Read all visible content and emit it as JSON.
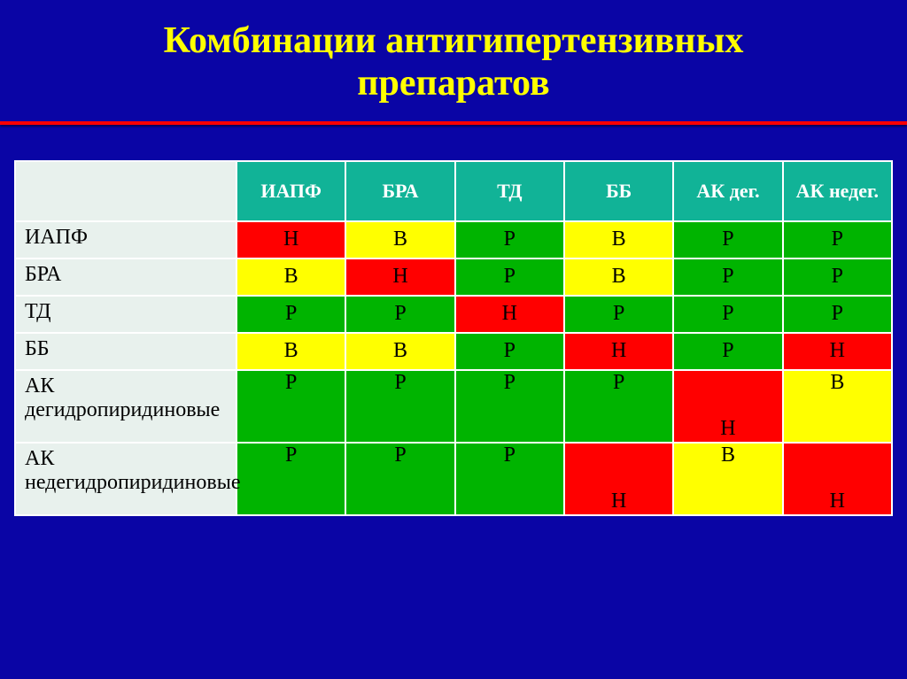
{
  "title_line1": "Комбинации антигипертензивных",
  "title_line2": "препаратов",
  "colors": {
    "green": "#00b400",
    "yellow": "#ffff00",
    "red": "#ff0000",
    "header": "#11b397",
    "rowbg": "#e8f1ed",
    "slide": "#0a05a5"
  },
  "columns": [
    "ИАПФ",
    "БРА",
    "ТД",
    "ББ",
    "АК дег.",
    "АК недег."
  ],
  "rows": [
    {
      "label": "ИАПФ",
      "height": "short",
      "cells": [
        {
          "t": "Н",
          "c": "red",
          "va": "mid"
        },
        {
          "t": "В",
          "c": "yellow",
          "va": "mid"
        },
        {
          "t": "Р",
          "c": "green",
          "va": "mid"
        },
        {
          "t": "В",
          "c": "yellow",
          "va": "mid"
        },
        {
          "t": "Р",
          "c": "green",
          "va": "mid"
        },
        {
          "t": "Р",
          "c": "green",
          "va": "mid"
        }
      ]
    },
    {
      "label": "БРА",
      "height": "short",
      "cells": [
        {
          "t": "В",
          "c": "yellow",
          "va": "mid"
        },
        {
          "t": "Н",
          "c": "red",
          "va": "mid"
        },
        {
          "t": "Р",
          "c": "green",
          "va": "mid"
        },
        {
          "t": "В",
          "c": "yellow",
          "va": "mid"
        },
        {
          "t": "Р",
          "c": "green",
          "va": "mid"
        },
        {
          "t": "Р",
          "c": "green",
          "va": "mid"
        }
      ]
    },
    {
      "label": "ТД",
      "height": "short",
      "cells": [
        {
          "t": "Р",
          "c": "green",
          "va": "mid"
        },
        {
          "t": "Р",
          "c": "green",
          "va": "mid"
        },
        {
          "t": "Н",
          "c": "red",
          "va": "mid"
        },
        {
          "t": "Р",
          "c": "green",
          "va": "mid"
        },
        {
          "t": "Р",
          "c": "green",
          "va": "mid"
        },
        {
          "t": "Р",
          "c": "green",
          "va": "mid"
        }
      ]
    },
    {
      "label": "ББ",
      "height": "short",
      "cells": [
        {
          "t": "В",
          "c": "yellow",
          "va": "mid"
        },
        {
          "t": "В",
          "c": "yellow",
          "va": "mid"
        },
        {
          "t": "Р",
          "c": "green",
          "va": "mid"
        },
        {
          "t": "Н",
          "c": "red",
          "va": "mid"
        },
        {
          "t": "Р",
          "c": "green",
          "va": "mid"
        },
        {
          "t": "Н",
          "c": "red",
          "va": "mid"
        }
      ]
    },
    {
      "label": "АК дегидропиридиновые",
      "height": "tall",
      "cells": [
        {
          "t": "Р",
          "c": "green",
          "va": "top"
        },
        {
          "t": "Р",
          "c": "green",
          "va": "top"
        },
        {
          "t": "Р",
          "c": "green",
          "va": "top"
        },
        {
          "t": "Р",
          "c": "green",
          "va": "top"
        },
        {
          "t": "Н",
          "c": "red",
          "va": "bot"
        },
        {
          "t": "В",
          "c": "yellow",
          "va": "top"
        }
      ]
    },
    {
      "label": "АК недегидропиридиновые",
      "height": "tall",
      "cells": [
        {
          "t": "Р",
          "c": "green",
          "va": "top"
        },
        {
          "t": "Р",
          "c": "green",
          "va": "top"
        },
        {
          "t": "Р",
          "c": "green",
          "va": "top"
        },
        {
          "t": "Н",
          "c": "red",
          "va": "bot"
        },
        {
          "t": "В",
          "c": "yellow",
          "va": "top"
        },
        {
          "t": "Н",
          "c": "red",
          "va": "bot"
        }
      ]
    }
  ]
}
